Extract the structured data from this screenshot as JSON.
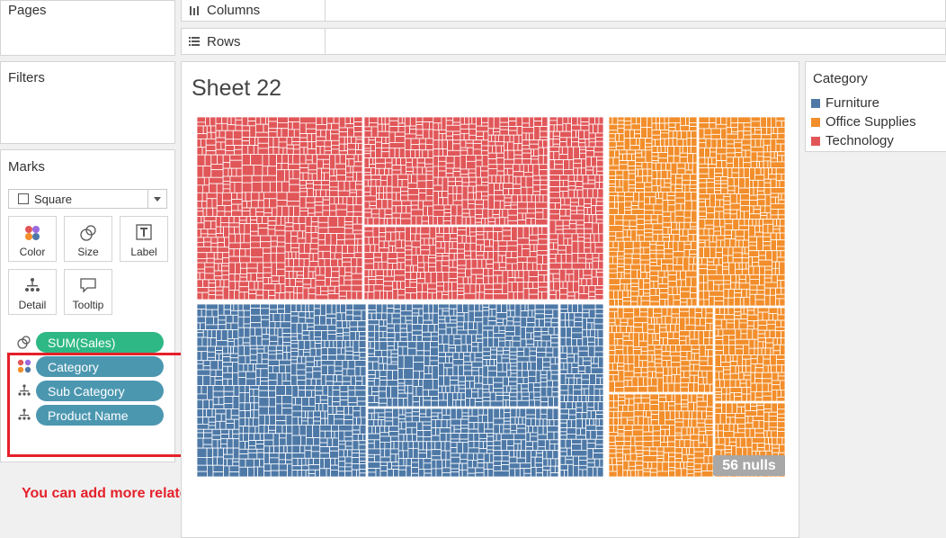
{
  "shelves": {
    "columns_label": "Columns",
    "rows_label": "Rows"
  },
  "pages": {
    "title": "Pages"
  },
  "filters": {
    "title": "Filters"
  },
  "marks": {
    "title": "Marks",
    "mark_type": "Square",
    "buttons": {
      "color": "Color",
      "size": "Size",
      "label": "Label",
      "detail": "Detail",
      "tooltip": "Tooltip"
    },
    "pills": {
      "sales": "SUM(Sales)",
      "category": "Category",
      "sub_category": "Sub Category",
      "product_name": "Product Name"
    }
  },
  "annotation": "You can add more related data level for more detail view",
  "sheet": {
    "title": "Sheet 22",
    "nulls_badge": "56 nulls"
  },
  "legend": {
    "title": "Category",
    "items": [
      {
        "label": "Furniture",
        "color": "#4e79a7"
      },
      {
        "label": "Office Supplies",
        "color": "#f28e2b"
      },
      {
        "label": "Technology",
        "color": "#e15759"
      }
    ]
  },
  "colors": {
    "furniture": "#4e79a7",
    "office_supplies": "#f28e2b",
    "technology": "#e15759",
    "pill_green": "#2eb886",
    "pill_blue": "#4c97b0",
    "annotation_red": "#e5202a"
  }
}
